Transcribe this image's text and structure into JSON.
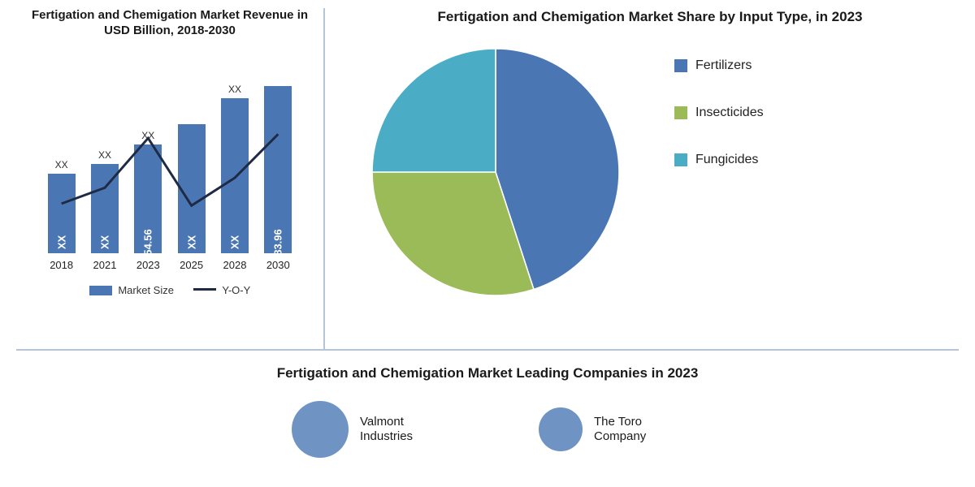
{
  "bar_chart": {
    "title": "Fertigation and Chemigation Market Revenue in USD Billion, 2018-2030",
    "categories": [
      "2018",
      "2021",
      "2023",
      "2025",
      "2028",
      "2030"
    ],
    "bar_values": [
      40,
      45,
      54.56,
      65,
      78,
      83.96
    ],
    "bar_value_labels": [
      "XX",
      "XX",
      "54.56",
      "XX",
      "XX",
      "83.96"
    ],
    "bar_top_labels": [
      "XX",
      "XX",
      "XX",
      "",
      "XX",
      ""
    ],
    "line_values": [
      25,
      33,
      58,
      24,
      38,
      60
    ],
    "bar_color": "#4a77b4",
    "line_color": "#1f2a44",
    "background_color": "#ffffff",
    "y_max": 90,
    "label_fontsize": 13,
    "title_fontsize": 15,
    "legend": {
      "bar": "Market Size",
      "line": "Y-O-Y"
    }
  },
  "pie_chart": {
    "title": "Fertigation and Chemigation Market Share by Input Type, in 2023",
    "slices": [
      {
        "label": "Fertilizers",
        "value": 45,
        "color": "#4a77b4"
      },
      {
        "label": "Insecticides",
        "value": 30,
        "color": "#9bbb59"
      },
      {
        "label": "Fungicides",
        "value": 25,
        "color": "#4bacc6"
      }
    ],
    "title_fontsize": 17,
    "legend_fontsize": 16,
    "background_color": "#ffffff"
  },
  "companies": {
    "title": "Fertigation and Chemigation Market Leading Companies in 2023",
    "items": [
      {
        "label": "Valmont Industries",
        "size": 70,
        "color": "#6f94c4"
      },
      {
        "label": "The Toro Company",
        "size": 54,
        "color": "#6f94c4"
      }
    ],
    "title_fontsize": 17,
    "label_fontsize": 15
  },
  "divider_color": "#b7c4d8"
}
